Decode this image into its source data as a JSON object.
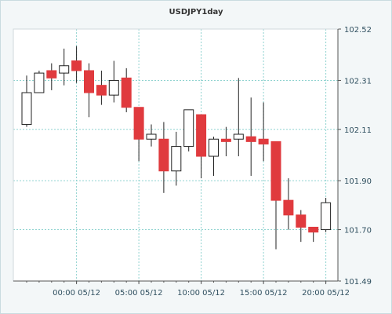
{
  "chart_data": {
    "type": "candlestick",
    "title": "USDJPY1day",
    "ylim": [
      101.49,
      102.52
    ],
    "y_ticks": [
      101.49,
      101.7,
      101.9,
      102.11,
      102.31,
      102.52
    ],
    "y_tick_labels": [
      "101.49",
      "101.70",
      "101.90",
      "102.11",
      "102.31",
      "102.52"
    ],
    "x_tick_labels": [
      "00:00 05/12",
      "05:00 05/12",
      "10:00 05/12",
      "15:00 05/12",
      "20:00 05/12"
    ],
    "grid": true,
    "colors": {
      "up": "#ffffff",
      "down": "#e03a3e",
      "wick": "#222222",
      "grid": "#8fd3d0",
      "plot_bg": "#ffffff",
      "axis": "#555555"
    },
    "candles": [
      {
        "open": 102.13,
        "high": 102.33,
        "low": 102.12,
        "close": 102.26
      },
      {
        "open": 102.26,
        "high": 102.35,
        "low": 102.26,
        "close": 102.34
      },
      {
        "open": 102.35,
        "high": 102.38,
        "low": 102.27,
        "close": 102.32
      },
      {
        "open": 102.34,
        "high": 102.44,
        "low": 102.29,
        "close": 102.37
      },
      {
        "open": 102.39,
        "high": 102.45,
        "low": 102.3,
        "close": 102.35
      },
      {
        "open": 102.35,
        "high": 102.38,
        "low": 102.16,
        "close": 102.26
      },
      {
        "open": 102.29,
        "high": 102.35,
        "low": 102.21,
        "close": 102.25
      },
      {
        "open": 102.25,
        "high": 102.39,
        "low": 102.22,
        "close": 102.31
      },
      {
        "open": 102.32,
        "high": 102.36,
        "low": 102.18,
        "close": 102.2
      },
      {
        "open": 102.2,
        "high": 102.2,
        "low": 101.98,
        "close": 102.07
      },
      {
        "open": 102.07,
        "high": 102.13,
        "low": 102.04,
        "close": 102.09
      },
      {
        "open": 102.07,
        "high": 102.14,
        "low": 101.85,
        "close": 101.94
      },
      {
        "open": 101.94,
        "high": 102.1,
        "low": 101.88,
        "close": 102.04
      },
      {
        "open": 102.04,
        "high": 102.19,
        "low": 102.02,
        "close": 102.19
      },
      {
        "open": 102.17,
        "high": 102.17,
        "low": 101.91,
        "close": 102.0
      },
      {
        "open": 102.0,
        "high": 102.08,
        "low": 101.92,
        "close": 102.07
      },
      {
        "open": 102.07,
        "high": 102.12,
        "low": 102.0,
        "close": 102.06
      },
      {
        "open": 102.07,
        "high": 102.32,
        "low": 102.0,
        "close": 102.09
      },
      {
        "open": 102.08,
        "high": 102.24,
        "low": 101.92,
        "close": 102.06
      },
      {
        "open": 102.07,
        "high": 102.22,
        "low": 101.98,
        "close": 102.05
      },
      {
        "open": 102.06,
        "high": 102.06,
        "low": 101.62,
        "close": 101.82
      },
      {
        "open": 101.82,
        "high": 101.91,
        "low": 101.7,
        "close": 101.76
      },
      {
        "open": 101.76,
        "high": 101.78,
        "low": 101.65,
        "close": 101.71
      },
      {
        "open": 101.71,
        "high": 101.71,
        "low": 101.65,
        "close": 101.69
      },
      {
        "open": 101.7,
        "high": 101.83,
        "low": 101.69,
        "close": 101.81
      }
    ]
  }
}
